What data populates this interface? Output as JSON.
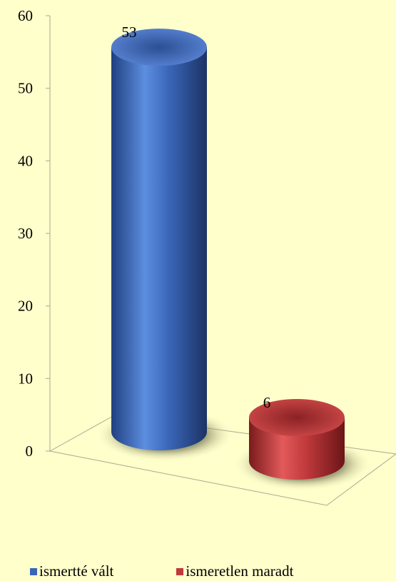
{
  "chart_data": {
    "type": "bar",
    "style": "3d-cylinder",
    "categories": [
      "ismertté vált",
      "ismeretlen maradt"
    ],
    "values": [
      53,
      6
    ],
    "data_labels": [
      "53",
      "6"
    ],
    "ylim": [
      0,
      60
    ],
    "yticks": [
      "0",
      "10",
      "20",
      "30",
      "40",
      "50",
      "60"
    ],
    "legend_position": "bottom",
    "grid": false,
    "colors": [
      "#3a66b8",
      "#c0393b"
    ]
  }
}
